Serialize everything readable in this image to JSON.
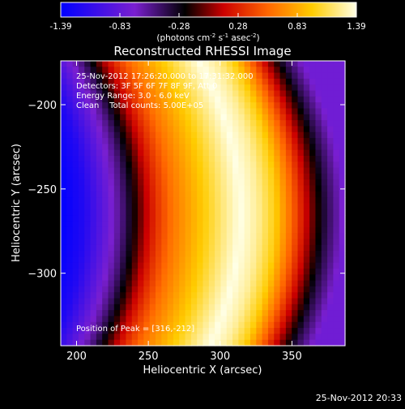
{
  "chart_data": {
    "type": "heatmap",
    "title": "Reconstructed RHESSI Image",
    "xlabel": "Heliocentric X (arcsec)",
    "ylabel": "Heliocentric Y (arcsec)",
    "xlim": [
      189,
      387
    ],
    "ylim": [
      -343,
      -174
    ],
    "xticks": [
      200,
      250,
      300,
      350
    ],
    "yticks": [
      -200,
      -250,
      -300
    ],
    "colorbar": {
      "ticks": [
        "-1.39",
        "-0.83",
        "-0.28",
        "0.28",
        "0.83",
        "1.39"
      ],
      "min": -1.39,
      "max": 1.39,
      "unit_prefix": "(photons cm",
      "unit_exp1": "-2",
      "unit_mid": " s",
      "unit_exp2": "-1",
      "unit_mid2": " asec",
      "unit_exp3": "-2",
      "unit_suffix": ")"
    },
    "annotations": [
      "25-Nov-2012 17:26:20.000 to 17:31:32.000",
      "Detectors: 3F 5F 6F 7F 8F 9F, Att 0",
      "Energy Range: 3.0 - 6.0 keV",
      "Clean    Total counts: 5.00E+05"
    ],
    "peak_label": "Position of Peak = [316,-212]",
    "peak": [
      316,
      -212
    ],
    "profile": {
      "x": [
        189,
        205,
        220,
        232,
        240,
        248,
        256,
        266,
        278,
        290,
        302,
        314,
        326,
        338,
        350,
        362,
        374,
        387
      ],
      "value": [
        -1.39,
        -1.2,
        -0.83,
        -0.5,
        -0.2,
        0.1,
        0.35,
        0.6,
        0.8,
        1.0,
        1.2,
        1.39,
        1.25,
        1.0,
        0.55,
        0.05,
        -0.4,
        -0.75
      ]
    },
    "arc_shift": 0.0035
  },
  "timestamp": "25-Nov-2012 20:33",
  "colormap": [
    [
      0.0,
      "#0000ff"
    ],
    [
      0.25,
      "#7a1fd0"
    ],
    [
      0.42,
      "#000000"
    ],
    [
      0.55,
      "#cc0000"
    ],
    [
      0.7,
      "#ff6600"
    ],
    [
      0.85,
      "#ffcc00"
    ],
    [
      1.0,
      "#ffffe6"
    ]
  ]
}
